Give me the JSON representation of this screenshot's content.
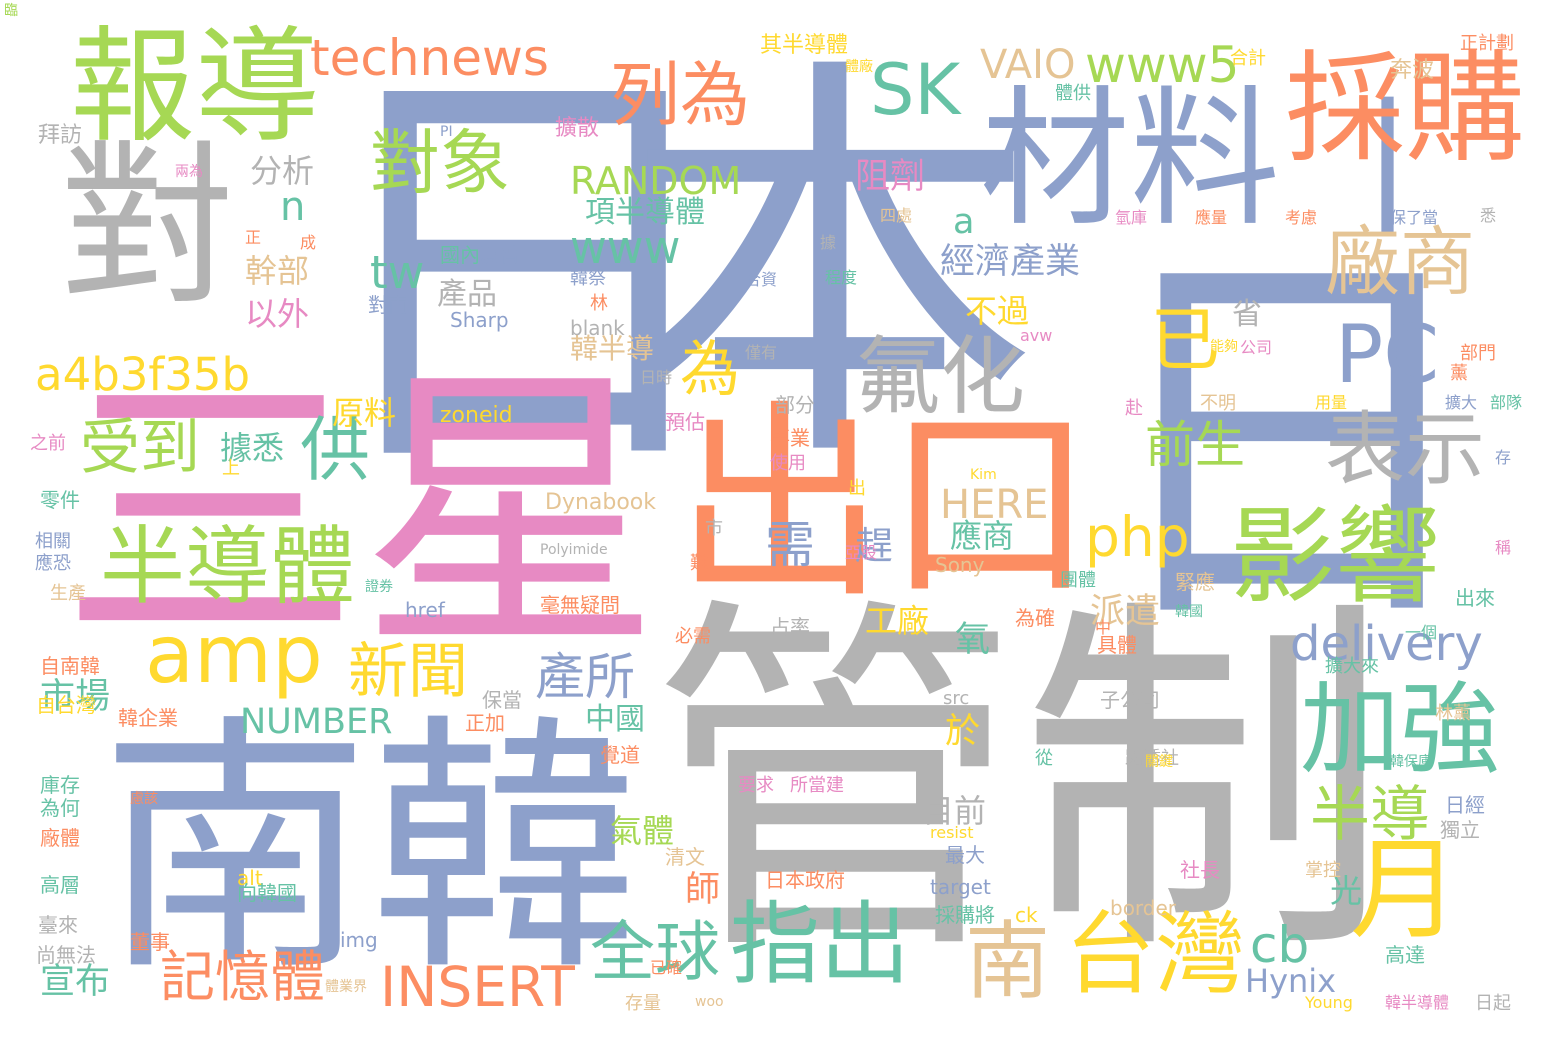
{
  "palette": {
    "blue": "#8da0cb",
    "pink": "#e78ac3",
    "orange": "#fc8d62",
    "green": "#a6d854",
    "teal": "#66c2a5",
    "gray": "#b3b3b3",
    "tan": "#e5c494",
    "yellow": "#ffd92f",
    "background": "#ffffff"
  },
  "words": [
    {
      "text": "日",
      "color": "blue"
    },
    {
      "text": "本",
      "color": "blue"
    },
    {
      "text": "日",
      "color": "blue"
    },
    {
      "text": "三星",
      "color": "pink"
    },
    {
      "text": "管制",
      "color": "gray"
    },
    {
      "text": "南韓",
      "color": "blue"
    },
    {
      "text": "出口",
      "color": "orange"
    },
    {
      "text": "對",
      "color": "gray"
    },
    {
      "text": "材料",
      "color": "blue"
    },
    {
      "text": "一",
      "color": "blue"
    },
    {
      "text": "採購",
      "color": "orange"
    },
    {
      "text": "報導",
      "color": "green"
    },
    {
      "text": "影響",
      "color": "green"
    },
    {
      "text": "月",
      "color": "yellow"
    },
    {
      "text": "加強",
      "color": "teal"
    },
    {
      "text": "指出",
      "color": "teal"
    },
    {
      "text": "台灣",
      "color": "yellow"
    },
    {
      "text": "南",
      "color": "tan"
    },
    {
      "text": "半導體",
      "color": "green"
    },
    {
      "text": "氟化",
      "color": "gray"
    },
    {
      "text": "表示",
      "color": "gray"
    },
    {
      "text": "廠商",
      "color": "tan"
    },
    {
      "text": "PC",
      "color": "blue"
    },
    {
      "text": "amp",
      "color": "yellow"
    },
    {
      "text": "對象",
      "color": "green"
    },
    {
      "text": "列為",
      "color": "orange"
    },
    {
      "text": "SK",
      "color": "teal"
    },
    {
      "text": "供",
      "color": "teal"
    },
    {
      "text": "全球",
      "color": "teal"
    },
    {
      "text": "technews",
      "color": "orange"
    },
    {
      "text": "www5",
      "color": "green"
    },
    {
      "text": "已",
      "color": "yellow"
    },
    {
      "text": "為",
      "color": "yellow"
    },
    {
      "text": "受到",
      "color": "green"
    },
    {
      "text": "新聞",
      "color": "yellow"
    },
    {
      "text": "記憶體",
      "color": "orange"
    },
    {
      "text": "INSERT",
      "color": "orange"
    },
    {
      "text": "a4b3f35b",
      "color": "yellow"
    },
    {
      "text": "delivery",
      "color": "blue"
    },
    {
      "text": "半導",
      "color": "green"
    },
    {
      "text": "cb",
      "color": "teal"
    },
    {
      "text": "php",
      "color": "yellow"
    },
    {
      "text": "前生",
      "color": "green"
    },
    {
      "text": "產所",
      "color": "blue"
    },
    {
      "text": "www",
      "color": "teal"
    },
    {
      "text": "tw",
      "color": "teal"
    },
    {
      "text": "需",
      "color": "blue"
    },
    {
      "text": "RANDOM",
      "color": "green"
    },
    {
      "text": "HERE",
      "color": "tan"
    },
    {
      "text": "NUMBER",
      "color": "teal"
    },
    {
      "text": "VAIO",
      "color": "tan"
    },
    {
      "text": "經濟產業",
      "color": "blue"
    },
    {
      "text": "項半導體",
      "color": "teal"
    },
    {
      "text": "Hynix",
      "color": "blue"
    },
    {
      "text": "阻劑",
      "color": "pink"
    },
    {
      "text": "分析",
      "color": "gray"
    },
    {
      "text": "n",
      "color": "teal"
    },
    {
      "text": "a",
      "color": "teal"
    },
    {
      "text": "產品",
      "color": "gray"
    },
    {
      "text": "幹部",
      "color": "tan"
    },
    {
      "text": "以外",
      "color": "pink"
    },
    {
      "text": "原料",
      "color": "yellow"
    },
    {
      "text": "據悉",
      "color": "teal"
    },
    {
      "text": "趕",
      "color": "blue"
    },
    {
      "text": "應商",
      "color": "teal"
    },
    {
      "text": "工廠",
      "color": "yellow"
    },
    {
      "text": "派遣",
      "color": "tan"
    },
    {
      "text": "韓半導",
      "color": "tan"
    },
    {
      "text": "不過",
      "color": "yellow"
    },
    {
      "text": "光",
      "color": "teal"
    },
    {
      "text": "市場",
      "color": "teal"
    },
    {
      "text": "宣布",
      "color": "teal"
    },
    {
      "text": "中國",
      "color": "teal"
    },
    {
      "text": "氣體",
      "color": "green"
    },
    {
      "text": "目前",
      "color": "gray"
    },
    {
      "text": "師",
      "color": "orange"
    },
    {
      "text": "氧",
      "color": "teal"
    },
    {
      "text": "於",
      "color": "yellow"
    },
    {
      "text": "省",
      "color": "gray"
    },
    {
      "text": "Sharp",
      "color": "blue"
    },
    {
      "text": "zoneid",
      "color": "yellow"
    },
    {
      "text": "Dynabook",
      "color": "tan"
    },
    {
      "text": "Sony",
      "color": "tan"
    },
    {
      "text": "毫無疑問",
      "color": "orange"
    },
    {
      "text": "擴散",
      "color": "pink"
    },
    {
      "text": "其半導體",
      "color": "yellow"
    },
    {
      "text": "奔波",
      "color": "tan"
    },
    {
      "text": "正計劃",
      "color": "orange"
    },
    {
      "text": "合計",
      "color": "yellow"
    },
    {
      "text": "體供",
      "color": "teal"
    },
    {
      "text": "拜訪",
      "color": "gray"
    },
    {
      "text": "國內",
      "color": "teal"
    },
    {
      "text": "夏普",
      "color": "blue"
    },
    {
      "text": "對南",
      "color": "blue"
    },
    {
      "text": "blank",
      "color": "gray"
    },
    {
      "text": "部分",
      "color": "gray"
    },
    {
      "text": "預估",
      "color": "pink"
    },
    {
      "text": "事業",
      "color": "orange"
    },
    {
      "text": "使用",
      "color": "pink"
    },
    {
      "text": "href",
      "color": "blue"
    },
    {
      "text": "占率",
      "color": "gray"
    },
    {
      "text": "具體",
      "color": "orange"
    },
    {
      "text": "子公司",
      "color": "gray"
    },
    {
      "text": "保當",
      "color": "gray"
    },
    {
      "text": "正加",
      "color": "orange"
    },
    {
      "text": "覺道",
      "color": "orange"
    },
    {
      "text": "清文",
      "color": "tan"
    },
    {
      "text": "日本政府",
      "color": "orange"
    },
    {
      "text": "要求",
      "color": "pink"
    },
    {
      "text": "所當建",
      "color": "pink"
    },
    {
      "text": "最大",
      "color": "blue"
    },
    {
      "text": "target",
      "color": "blue"
    },
    {
      "text": "採購將",
      "color": "teal"
    },
    {
      "text": "ck",
      "color": "yellow"
    },
    {
      "text": "border",
      "color": "tan"
    },
    {
      "text": "img",
      "color": "blue"
    },
    {
      "text": "alt",
      "color": "yellow"
    },
    {
      "text": "向韓國",
      "color": "teal"
    },
    {
      "text": "董事",
      "color": "orange"
    },
    {
      "text": "自南韓",
      "color": "orange"
    },
    {
      "text": "自台灣",
      "color": "yellow"
    },
    {
      "text": "韓企業",
      "color": "orange"
    },
    {
      "text": "庫存",
      "color": "teal"
    },
    {
      "text": "為何",
      "color": "teal"
    },
    {
      "text": "廠體",
      "color": "orange"
    },
    {
      "text": "高層",
      "color": "teal"
    },
    {
      "text": "臺來",
      "color": "gray"
    },
    {
      "text": "尚無法",
      "color": "gray"
    },
    {
      "text": "零件",
      "color": "teal"
    },
    {
      "text": "相關",
      "color": "blue"
    },
    {
      "text": "應恐",
      "color": "blue"
    },
    {
      "text": "生產",
      "color": "tan"
    },
    {
      "text": "之前",
      "color": "pink"
    },
    {
      "text": "出來",
      "color": "teal"
    },
    {
      "text": "林薰",
      "color": "tan"
    },
    {
      "text": "日經",
      "color": "blue"
    },
    {
      "text": "獨立",
      "color": "gray"
    },
    {
      "text": "社長",
      "color": "pink"
    },
    {
      "text": "高達",
      "color": "teal"
    },
    {
      "text": "掌控",
      "color": "tan"
    },
    {
      "text": "擴大來",
      "color": "teal"
    },
    {
      "text": "路透社",
      "color": "gray"
    },
    {
      "text": "緊應",
      "color": "tan"
    },
    {
      "text": "團體",
      "color": "teal"
    },
    {
      "text": "為確",
      "color": "orange"
    },
    {
      "text": "從",
      "color": "teal"
    },
    {
      "text": "必需",
      "color": "orange"
    },
    {
      "text": "src",
      "color": "gray"
    },
    {
      "text": "Polyimide",
      "color": "gray"
    },
    {
      "text": "Kim",
      "color": "yellow"
    },
    {
      "text": "resist",
      "color": "yellow"
    },
    {
      "text": "avw",
      "color": "pink"
    },
    {
      "text": "Young",
      "color": "yellow"
    },
    {
      "text": "woo",
      "color": "tan"
    },
    {
      "text": "PI",
      "color": "blue"
    },
    {
      "text": "韓半導體",
      "color": "pink"
    },
    {
      "text": "存量",
      "color": "tan"
    },
    {
      "text": "部門",
      "color": "orange"
    },
    {
      "text": "公司",
      "color": "pink"
    },
    {
      "text": "不明",
      "color": "tan"
    },
    {
      "text": "擴大",
      "color": "blue"
    },
    {
      "text": "部隊",
      "color": "teal"
    },
    {
      "text": "用量",
      "color": "yellow"
    },
    {
      "text": "應量",
      "color": "orange"
    },
    {
      "text": "考慮",
      "color": "orange"
    },
    {
      "text": "保了當",
      "color": "blue"
    },
    {
      "text": "氫庫",
      "color": "pink"
    },
    {
      "text": "四處",
      "color": "tan"
    },
    {
      "text": "程度",
      "color": "teal"
    },
    {
      "text": "合資",
      "color": "blue"
    },
    {
      "text": "僅有",
      "color": "gray"
    },
    {
      "text": "日時",
      "color": "gray"
    },
    {
      "text": "韓祭",
      "color": "blue"
    },
    {
      "text": "林",
      "color": "orange"
    },
    {
      "text": "市",
      "color": "gray"
    },
    {
      "text": "難",
      "color": "orange"
    },
    {
      "text": "出",
      "color": "yellow"
    },
    {
      "text": "赴",
      "color": "pink"
    },
    {
      "text": "薰",
      "color": "orange"
    },
    {
      "text": "據",
      "color": "gray"
    },
    {
      "text": "正",
      "color": "orange"
    },
    {
      "text": "成",
      "color": "orange"
    },
    {
      "text": "上",
      "color": "yellow"
    },
    {
      "text": "兩為",
      "color": "pink"
    },
    {
      "text": "中",
      "color": "orange"
    },
    {
      "text": "存",
      "color": "blue"
    },
    {
      "text": "悉",
      "color": "gray"
    },
    {
      "text": "稱",
      "color": "pink"
    },
    {
      "text": "一個",
      "color": "teal"
    },
    {
      "text": "關鍵",
      "color": "yellow"
    },
    {
      "text": "體業界",
      "color": "tan"
    },
    {
      "text": "已確",
      "color": "orange"
    },
    {
      "text": "亞股",
      "color": "pink"
    },
    {
      "text": "證券",
      "color": "teal"
    },
    {
      "text": "慮該",
      "color": "orange"
    },
    {
      "text": "韓保庫",
      "color": "teal"
    },
    {
      "text": "韓國",
      "color": "teal"
    },
    {
      "text": "能夠",
      "color": "yellow"
    },
    {
      "text": "體廠",
      "color": "yellow"
    },
    {
      "text": "日起",
      "color": "gray"
    },
    {
      "text": "臨",
      "color": "green"
    }
  ]
}
